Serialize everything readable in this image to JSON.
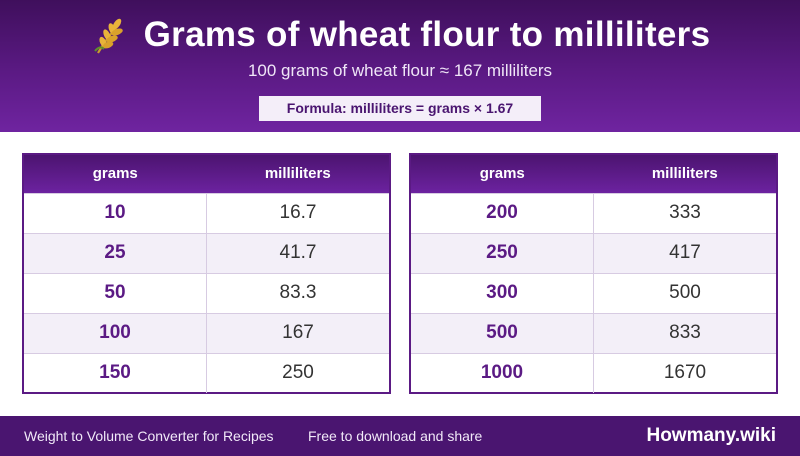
{
  "header": {
    "title": "Grams of wheat flour to milliliters",
    "subtitle": "100 grams of wheat flour ≈ 167 milliliters",
    "formula": "Formula: milliliters = grams × 1.67",
    "icon": "wheat-icon",
    "background_color": "#5b1a84"
  },
  "tables": [
    {
      "headers": [
        "grams",
        "milliliters"
      ],
      "rows": [
        {
          "grams": "10",
          "ml": "16.7"
        },
        {
          "grams": "25",
          "ml": "41.7"
        },
        {
          "grams": "50",
          "ml": "83.3"
        },
        {
          "grams": "100",
          "ml": "167"
        },
        {
          "grams": "150",
          "ml": "250"
        }
      ]
    },
    {
      "headers": [
        "grams",
        "milliliters"
      ],
      "rows": [
        {
          "grams": "200",
          "ml": "333"
        },
        {
          "grams": "250",
          "ml": "417"
        },
        {
          "grams": "300",
          "ml": "500"
        },
        {
          "grams": "500",
          "ml": "833"
        },
        {
          "grams": "1000",
          "ml": "1670"
        }
      ]
    }
  ],
  "footer": {
    "left": "Weight to Volume Converter for Recipes",
    "middle": "Free to download and share",
    "brand": "Howmany.wiki"
  }
}
